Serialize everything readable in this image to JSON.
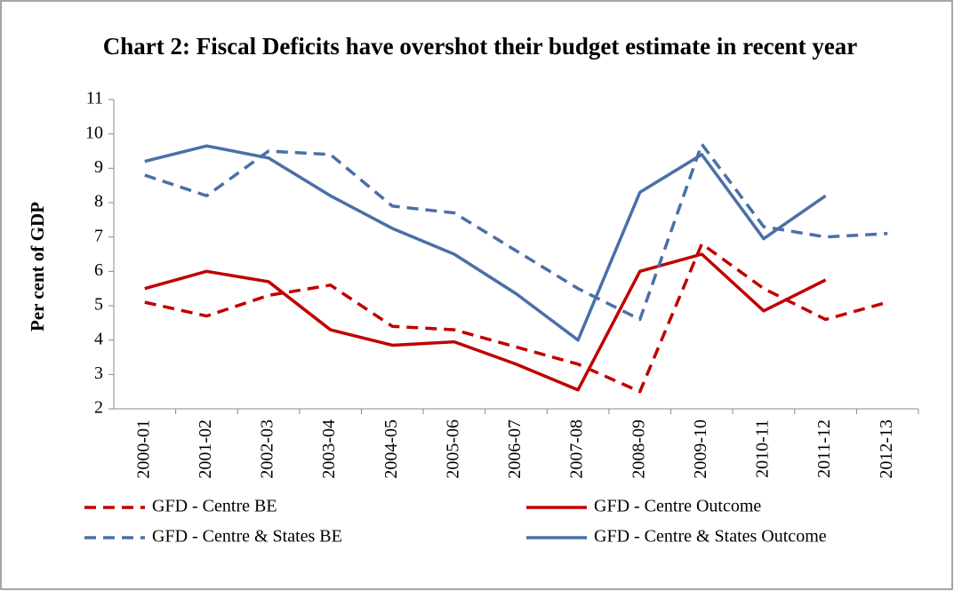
{
  "chart_data": {
    "type": "line",
    "title": "Chart 2: Fiscal Deficits have overshot their budget estimate in recent year",
    "y_label": "Per cent of GDP",
    "categories": [
      "2000-01",
      "2001-02",
      "2002-03",
      "2003-04",
      "2004-05",
      "2005-06",
      "2006-07",
      "2007-08",
      "2008-09",
      "2009-10",
      "2010-11",
      "2011-12",
      "2012-13"
    ],
    "series": [
      {
        "name": "GFD - Centre BE",
        "color": "#c00000",
        "dashed": true,
        "values": [
          5.1,
          4.7,
          5.3,
          5.6,
          4.4,
          4.3,
          3.8,
          3.3,
          2.5,
          6.8,
          5.5,
          4.6,
          5.1
        ]
      },
      {
        "name": "GFD - Centre Outcome",
        "color": "#c00000",
        "dashed": false,
        "values": [
          5.5,
          6.0,
          5.7,
          4.3,
          3.85,
          3.95,
          3.3,
          2.55,
          6.0,
          6.5,
          4.85,
          5.75,
          null
        ]
      },
      {
        "name": "GFD - Centre & States BE",
        "color": "#4a6fa8",
        "dashed": true,
        "values": [
          8.8,
          8.2,
          9.5,
          9.4,
          7.9,
          7.7,
          6.6,
          5.5,
          4.6,
          9.7,
          7.3,
          7.0,
          7.1
        ]
      },
      {
        "name": "GFD - Centre & States Outcome",
        "color": "#4a6fa8",
        "dashed": false,
        "values": [
          9.2,
          9.65,
          9.3,
          8.2,
          7.25,
          6.5,
          5.35,
          4.0,
          8.3,
          9.4,
          6.95,
          8.2,
          null
        ]
      }
    ],
    "ylim": [
      2,
      11
    ],
    "yticks": [
      2,
      3,
      4,
      5,
      6,
      7,
      8,
      9,
      10,
      11
    ],
    "grid": false
  }
}
